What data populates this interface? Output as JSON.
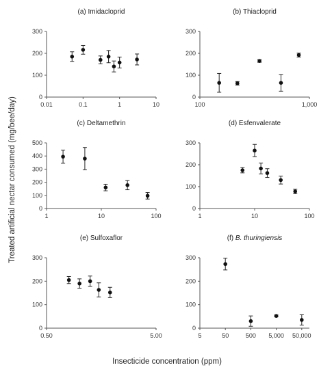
{
  "figure": {
    "ylabel": "Treated artificial nectar consumed (mg/bee/day)",
    "xlabel": "Insecticide concentration (ppm)"
  },
  "chart_data": [
    {
      "type": "scatter",
      "title": "(a) Imidacloprid",
      "title_parts": [
        {
          "text": "(a) Imidacloprid",
          "italic": false
        }
      ],
      "xscale": "log",
      "xlim": [
        0.01,
        10
      ],
      "ylim": [
        0,
        300
      ],
      "xticks": [
        0.01,
        0.1,
        1,
        10
      ],
      "xtick_labels": [
        "0.01",
        "0.1",
        "1",
        "10"
      ],
      "yticks": [
        0,
        100,
        200,
        300
      ],
      "ytick_labels": [
        "0",
        "100",
        "200",
        "300"
      ],
      "points": [
        {
          "x": 0.05,
          "y": 185,
          "err": 22
        },
        {
          "x": 0.1,
          "y": 216,
          "err": 20
        },
        {
          "x": 0.3,
          "y": 170,
          "err": 18
        },
        {
          "x": 0.5,
          "y": 185,
          "err": 28
        },
        {
          "x": 0.7,
          "y": 140,
          "err": 25
        },
        {
          "x": 1.0,
          "y": 158,
          "err": 25
        },
        {
          "x": 3.0,
          "y": 172,
          "err": 25
        }
      ]
    },
    {
      "type": "scatter",
      "title": "(b) Thiacloprid",
      "title_parts": [
        {
          "text": "(b) Thiacloprid",
          "italic": false
        }
      ],
      "xscale": "log",
      "xlim": [
        100,
        1000
      ],
      "ylim": [
        0,
        300
      ],
      "xticks": [
        100,
        1000
      ],
      "xtick_labels": [
        "100",
        "1,000"
      ],
      "yticks": [
        0,
        100,
        200,
        300
      ],
      "ytick_labels": [
        "0",
        "100",
        "200",
        "300"
      ],
      "points": [
        {
          "x": 150,
          "y": 65,
          "err": 43
        },
        {
          "x": 220,
          "y": 63,
          "err": 8
        },
        {
          "x": 350,
          "y": 165,
          "err": 6
        },
        {
          "x": 550,
          "y": 65,
          "err": 38
        },
        {
          "x": 800,
          "y": 192,
          "err": 9
        }
      ]
    },
    {
      "type": "scatter",
      "title": "(c) Deltamethrin",
      "title_parts": [
        {
          "text": "(c) Deltamethrin",
          "italic": false
        }
      ],
      "xscale": "log",
      "xlim": [
        1,
        100
      ],
      "ylim": [
        0,
        500
      ],
      "xticks": [
        1,
        10,
        100
      ],
      "xtick_labels": [
        "1",
        "10",
        "100"
      ],
      "yticks": [
        0,
        100,
        200,
        300,
        400,
        500
      ],
      "ytick_labels": [
        "0",
        "100",
        "200",
        "300",
        "400",
        "500"
      ],
      "points": [
        {
          "x": 2,
          "y": 395,
          "err": 50
        },
        {
          "x": 5,
          "y": 380,
          "err": 85
        },
        {
          "x": 12,
          "y": 160,
          "err": 25
        },
        {
          "x": 30,
          "y": 178,
          "err": 35
        },
        {
          "x": 70,
          "y": 97,
          "err": 25
        }
      ]
    },
    {
      "type": "scatter",
      "title": "(d) Esfenvalerate",
      "title_parts": [
        {
          "text": "(d) Esfenvalerate",
          "italic": false
        }
      ],
      "xscale": "log",
      "xlim": [
        1,
        100
      ],
      "ylim": [
        0,
        300
      ],
      "xticks": [
        1,
        10,
        100
      ],
      "xtick_labels": [
        "1",
        "10",
        "100"
      ],
      "yticks": [
        0,
        100,
        200,
        300
      ],
      "ytick_labels": [
        "0",
        "100",
        "200",
        "300"
      ],
      "points": [
        {
          "x": 6,
          "y": 175,
          "err": 12
        },
        {
          "x": 10,
          "y": 265,
          "err": 28
        },
        {
          "x": 13,
          "y": 183,
          "err": 25
        },
        {
          "x": 17,
          "y": 162,
          "err": 20
        },
        {
          "x": 30,
          "y": 130,
          "err": 18
        },
        {
          "x": 55,
          "y": 78,
          "err": 10
        }
      ]
    },
    {
      "type": "scatter",
      "title": "(e) Sulfoxaflor",
      "title_parts": [
        {
          "text": "(e) Sulfoxaflor",
          "italic": false
        }
      ],
      "xscale": "log",
      "xlim": [
        0.5,
        5
      ],
      "ylim": [
        0,
        300
      ],
      "xticks": [
        0.5,
        5
      ],
      "xtick_labels": [
        "0.50",
        "5.00"
      ],
      "yticks": [
        0,
        100,
        200,
        300
      ],
      "ytick_labels": [
        "0",
        "100",
        "200",
        "300"
      ],
      "points": [
        {
          "x": 0.8,
          "y": 205,
          "err": 15
        },
        {
          "x": 1.0,
          "y": 190,
          "err": 20
        },
        {
          "x": 1.25,
          "y": 200,
          "err": 22
        },
        {
          "x": 1.5,
          "y": 163,
          "err": 30
        },
        {
          "x": 1.9,
          "y": 152,
          "err": 22
        }
      ]
    },
    {
      "type": "scatter",
      "title": "(f) B. thuringiensis",
      "title_parts": [
        {
          "text": "(f) ",
          "italic": false
        },
        {
          "text": "B. thuringiensis",
          "italic": true
        }
      ],
      "xscale": "log",
      "xlim": [
        5,
        100000
      ],
      "ylim": [
        0,
        300
      ],
      "xticks": [
        5,
        50,
        500,
        5000,
        50000
      ],
      "xtick_labels": [
        "5",
        "50",
        "500",
        "5,000",
        "50,000"
      ],
      "yticks": [
        0,
        100,
        200,
        300
      ],
      "ytick_labels": [
        "0",
        "100",
        "200",
        "300"
      ],
      "points": [
        {
          "x": 50,
          "y": 273,
          "err": 25
        },
        {
          "x": 500,
          "y": 30,
          "err": 22
        },
        {
          "x": 5000,
          "y": 52,
          "err": 4
        },
        {
          "x": 50000,
          "y": 35,
          "err": 22
        }
      ]
    }
  ]
}
